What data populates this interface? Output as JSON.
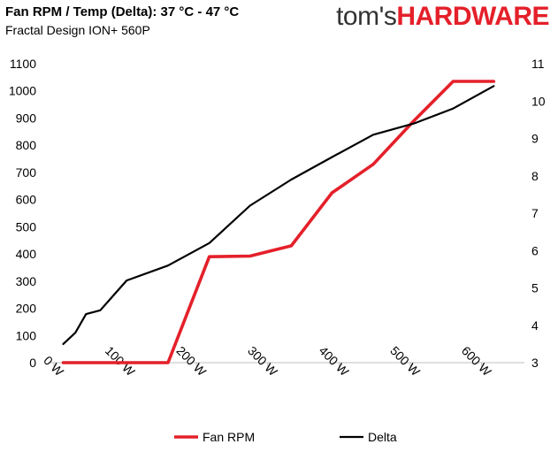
{
  "header": {
    "title": "Fan RPM / Temp (Delta): 37 °C - 47 °C",
    "subtitle": "Fractal Design ION+ 560P",
    "logo_part1": "tom's",
    "logo_part2": "HARDWARE",
    "logo_accent": "#e4202a"
  },
  "chart_data": {
    "type": "line",
    "title": "Fan RPM / Temp (Delta): 37 °C - 47 °C",
    "subtitle": "Fractal Design ION+ 560P",
    "x_ticks": [
      "0 W",
      "100 W",
      "200 W",
      "300 W",
      "400 W",
      "500 W",
      "600 W"
    ],
    "xlim": [
      -5,
      660
    ],
    "y_left_ticks": [
      "0",
      "100",
      "200",
      "300",
      "400",
      "500",
      "600",
      "700",
      "800",
      "900",
      "1000",
      "1100"
    ],
    "y_left_lim": [
      0,
      1100
    ],
    "y_right_ticks": [
      "3",
      "4",
      "5",
      "6",
      "7",
      "8",
      "9",
      "10",
      "11"
    ],
    "y_right_lim": [
      3,
      11
    ],
    "grid": false,
    "legend_position": "bottom",
    "series": [
      {
        "name": "Fan RPM",
        "axis": "left",
        "color": "#e4202a",
        "points": [
          [
            13,
            0
          ],
          [
            30,
            0
          ],
          [
            55,
            0
          ],
          [
            77,
            0
          ],
          [
            102,
            0
          ],
          [
            160,
            0
          ],
          [
            218,
            390
          ],
          [
            275,
            392
          ],
          [
            333,
            430
          ],
          [
            390,
            625
          ],
          [
            448,
            730
          ],
          [
            505,
            890
          ],
          [
            560,
            1035
          ],
          [
            617,
            1035
          ]
        ]
      },
      {
        "name": "Delta",
        "axis": "right",
        "color": "#000000",
        "points": [
          [
            13,
            3.5
          ],
          [
            30,
            3.8
          ],
          [
            45,
            4.3
          ],
          [
            65,
            4.4
          ],
          [
            102,
            5.2
          ],
          [
            160,
            5.6
          ],
          [
            218,
            6.2
          ],
          [
            275,
            7.2
          ],
          [
            333,
            7.9
          ],
          [
            390,
            8.5
          ],
          [
            448,
            9.1
          ],
          [
            505,
            9.4
          ],
          [
            560,
            9.8
          ],
          [
            617,
            10.4
          ]
        ]
      }
    ]
  }
}
